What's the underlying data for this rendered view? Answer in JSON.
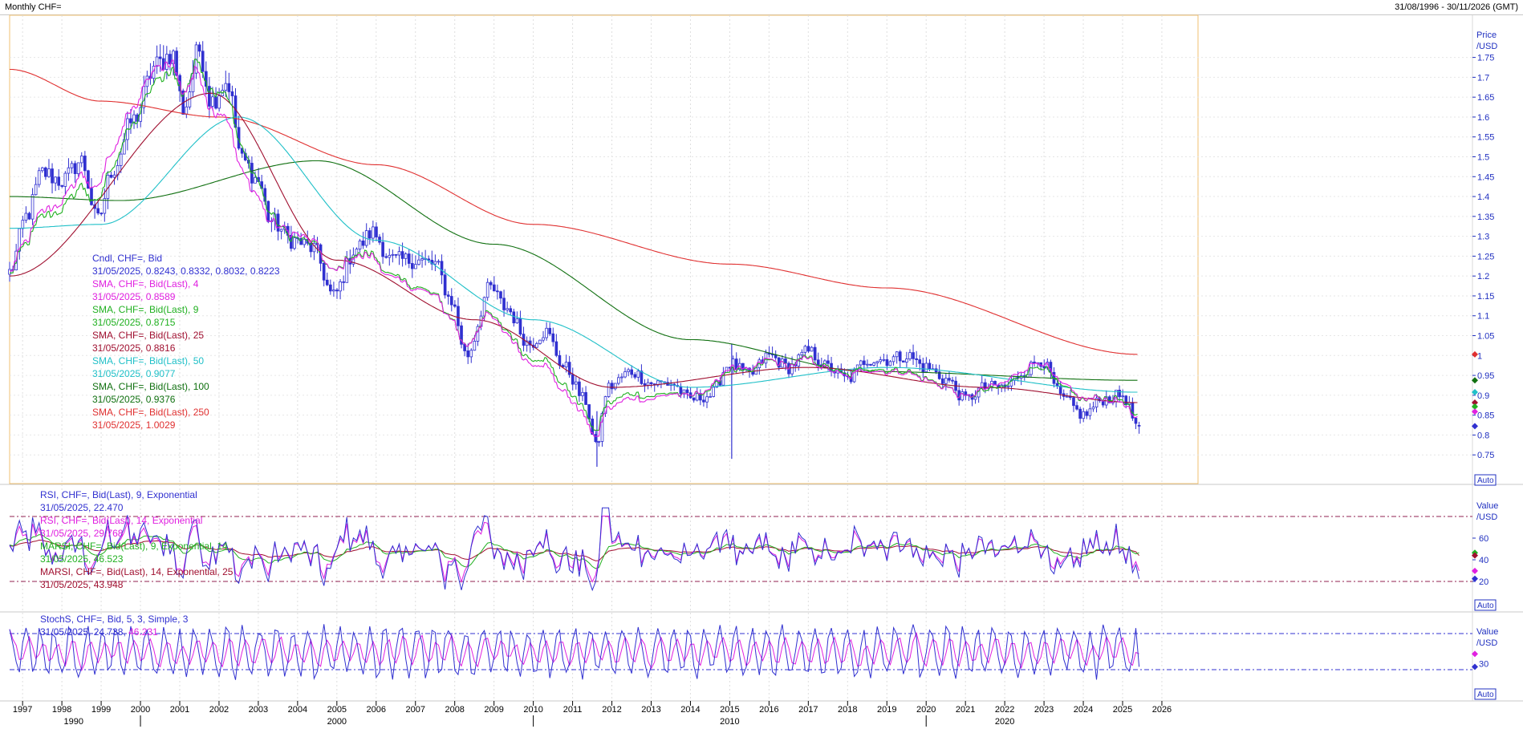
{
  "window": {
    "title": "Monthly CHF=",
    "date_range": "31/08/1996 - 30/11/2026 (GMT)"
  },
  "price_panel": {
    "axis_title": [
      "Price",
      "/USD"
    ],
    "auto_label": "Auto",
    "yticks": [
      "1.75",
      "1.7",
      "1.65",
      "1.6",
      "1.55",
      "1.5",
      "1.45",
      "1.4",
      "1.35",
      "1.3",
      "1.25",
      "1.2",
      "1.15",
      "1.1",
      "1.05",
      "1",
      "0.95",
      "0.9",
      "0.85",
      "0.8",
      "0.75"
    ],
    "legend": [
      {
        "label": "Cndl, CHF=, Bid",
        "value": "31/05/2025, 0.8243, 0.8332, 0.8032, 0.8223",
        "color": "#3030d0"
      },
      {
        "label": "SMA, CHF=, Bid(Last), 4",
        "value": "31/05/2025, 0.8589",
        "color": "#e020e0"
      },
      {
        "label": "SMA, CHF=, Bid(Last), 9",
        "value": "31/05/2025, 0.8715",
        "color": "#20b020"
      },
      {
        "label": "SMA, CHF=, Bid(Last), 25",
        "value": "31/05/2025, 0.8816",
        "color": "#a01030"
      },
      {
        "label": "SMA, CHF=, Bid(Last), 50",
        "value": "31/05/2025, 0.9077",
        "color": "#20c0c8"
      },
      {
        "label": "SMA, CHF=, Bid(Last), 100",
        "value": "31/05/2025, 0.9376",
        "color": "#107010"
      },
      {
        "label": "SMA, CHF=, Bid(Last), 250",
        "value": "31/05/2025, 1.0029",
        "color": "#e03030"
      }
    ]
  },
  "rsi_panel": {
    "axis_title": [
      "Value",
      "/USD"
    ],
    "auto_label": "Auto",
    "yticks": [
      "60",
      "40",
      "20"
    ],
    "legend": [
      {
        "label": "RSI, CHF=, Bid(Last), 9, Exponential",
        "value": "31/05/2025, 22.470",
        "color": "#3030d0"
      },
      {
        "label": "RSI, CHF=, Bid(Last), 14, Exponential",
        "value": "31/05/2025, 29.768",
        "color": "#e020e0"
      },
      {
        "label": "MARSI, CHF=, Bid(Last), 9, Exponential, 14",
        "value": "31/05/2025, 46.523",
        "color": "#20b020"
      },
      {
        "label": "MARSI, CHF=, Bid(Last), 14, Exponential, 25",
        "value": "31/05/2025, 43.948",
        "color": "#a01030"
      }
    ]
  },
  "stoch_panel": {
    "axis_title": [
      "Value",
      "/USD"
    ],
    "auto_label": "Auto",
    "yticks": [
      "30"
    ],
    "legend": {
      "label": "StochS, CHF=, Bid, 5, 3, Simple, 3",
      "date": "31/05/2025",
      "value1": "24.738",
      "value2": "46.231",
      "color1": "#3030d0",
      "color2": "#e020e0"
    }
  },
  "x_axis": {
    "years": [
      "1997",
      "1998",
      "1999",
      "2000",
      "2001",
      "2002",
      "2003",
      "2004",
      "2005",
      "2006",
      "2007",
      "2008",
      "2009",
      "2010",
      "2011",
      "2012",
      "2013",
      "2014",
      "2015",
      "2016",
      "2017",
      "2018",
      "2019",
      "2020",
      "2021",
      "2022",
      "2023",
      "2024",
      "2025",
      "2026"
    ],
    "decades": [
      "1990",
      "2000",
      "2010",
      "2020"
    ]
  },
  "chart_data": {
    "type": "candlestick",
    "title": "Monthly CHF=",
    "x_range": [
      "1996-08-31",
      "2026-11-30"
    ],
    "ylim": [
      0.72,
      1.78
    ],
    "last_candle": {
      "date": "31/05/2025",
      "open": 0.8243,
      "high": 0.8332,
      "low": 0.8032,
      "close": 0.8223
    },
    "price_anchors": [
      {
        "x": 1996.67,
        "y": 1.21
      },
      {
        "x": 1997.1,
        "y": 1.35
      },
      {
        "x": 1997.5,
        "y": 1.46
      },
      {
        "x": 1998.0,
        "y": 1.44
      },
      {
        "x": 1998.5,
        "y": 1.49
      },
      {
        "x": 1998.9,
        "y": 1.34
      },
      {
        "x": 1999.3,
        "y": 1.47
      },
      {
        "x": 1999.8,
        "y": 1.59
      },
      {
        "x": 2000.4,
        "y": 1.73
      },
      {
        "x": 2000.8,
        "y": 1.76
      },
      {
        "x": 2001.1,
        "y": 1.62
      },
      {
        "x": 2001.5,
        "y": 1.77
      },
      {
        "x": 2001.8,
        "y": 1.64
      },
      {
        "x": 2002.2,
        "y": 1.69
      },
      {
        "x": 2002.6,
        "y": 1.49
      },
      {
        "x": 2003.0,
        "y": 1.44
      },
      {
        "x": 2003.3,
        "y": 1.34
      },
      {
        "x": 2003.9,
        "y": 1.29
      },
      {
        "x": 2004.4,
        "y": 1.27
      },
      {
        "x": 2004.9,
        "y": 1.15
      },
      {
        "x": 2005.5,
        "y": 1.27
      },
      {
        "x": 2005.9,
        "y": 1.31
      },
      {
        "x": 2006.4,
        "y": 1.24
      },
      {
        "x": 2007.0,
        "y": 1.24
      },
      {
        "x": 2007.5,
        "y": 1.23
      },
      {
        "x": 2007.9,
        "y": 1.14
      },
      {
        "x": 2008.3,
        "y": 1.0
      },
      {
        "x": 2008.9,
        "y": 1.17
      },
      {
        "x": 2009.3,
        "y": 1.12
      },
      {
        "x": 2009.9,
        "y": 1.03
      },
      {
        "x": 2010.3,
        "y": 1.06
      },
      {
        "x": 2010.8,
        "y": 0.97
      },
      {
        "x": 2011.3,
        "y": 0.89
      },
      {
        "x": 2011.6,
        "y": 0.77
      },
      {
        "x": 2011.9,
        "y": 0.92
      },
      {
        "x": 2012.5,
        "y": 0.96
      },
      {
        "x": 2013.0,
        "y": 0.93
      },
      {
        "x": 2013.5,
        "y": 0.93
      },
      {
        "x": 2014.0,
        "y": 0.89
      },
      {
        "x": 2014.5,
        "y": 0.9
      },
      {
        "x": 2015.0,
        "y": 0.98
      },
      {
        "x": 2015.5,
        "y": 0.95
      },
      {
        "x": 2016.0,
        "y": 1.0
      },
      {
        "x": 2016.5,
        "y": 0.97
      },
      {
        "x": 2017.0,
        "y": 1.01
      },
      {
        "x": 2017.5,
        "y": 0.97
      },
      {
        "x": 2018.0,
        "y": 0.94
      },
      {
        "x": 2018.5,
        "y": 0.99
      },
      {
        "x": 2019.0,
        "y": 0.99
      },
      {
        "x": 2019.5,
        "y": 1.0
      },
      {
        "x": 2020.0,
        "y": 0.97
      },
      {
        "x": 2020.5,
        "y": 0.94
      },
      {
        "x": 2021.0,
        "y": 0.89
      },
      {
        "x": 2021.5,
        "y": 0.92
      },
      {
        "x": 2022.0,
        "y": 0.92
      },
      {
        "x": 2022.5,
        "y": 0.96
      },
      {
        "x": 2022.9,
        "y": 0.99
      },
      {
        "x": 2023.5,
        "y": 0.89
      },
      {
        "x": 2024.0,
        "y": 0.85
      },
      {
        "x": 2024.5,
        "y": 0.89
      },
      {
        "x": 2025.0,
        "y": 0.9
      },
      {
        "x": 2025.4,
        "y": 0.82
      }
    ],
    "sma_anchors": {
      "sma4": [
        {
          "x": 1996.67,
          "y": 1.21
        },
        {
          "x": 2000.8,
          "y": 1.72
        },
        {
          "x": 2003.5,
          "y": 1.33
        },
        {
          "x": 2008.3,
          "y": 1.05
        },
        {
          "x": 2011.6,
          "y": 0.81
        },
        {
          "x": 2016.0,
          "y": 0.98
        },
        {
          "x": 2021.0,
          "y": 0.9
        },
        {
          "x": 2022.9,
          "y": 0.98
        },
        {
          "x": 2025.4,
          "y": 0.8589
        }
      ],
      "sma9": [
        {
          "x": 1996.67,
          "y": 1.2
        },
        {
          "x": 2001.5,
          "y": 1.71
        },
        {
          "x": 2004.0,
          "y": 1.3
        },
        {
          "x": 2008.4,
          "y": 1.05
        },
        {
          "x": 2011.7,
          "y": 0.84
        },
        {
          "x": 2016.5,
          "y": 0.98
        },
        {
          "x": 2021.2,
          "y": 0.9
        },
        {
          "x": 2023.0,
          "y": 0.96
        },
        {
          "x": 2025.4,
          "y": 0.8715
        }
      ],
      "sma25": [
        {
          "x": 1996.67,
          "y": 1.2
        },
        {
          "x": 2001.8,
          "y": 1.66
        },
        {
          "x": 2005.0,
          "y": 1.24
        },
        {
          "x": 2008.5,
          "y": 1.09
        },
        {
          "x": 2012.0,
          "y": 0.92
        },
        {
          "x": 2017.0,
          "y": 0.97
        },
        {
          "x": 2021.5,
          "y": 0.92
        },
        {
          "x": 2025.4,
          "y": 0.8816
        }
      ],
      "sma50": [
        {
          "x": 1996.67,
          "y": 1.32
        },
        {
          "x": 1999.0,
          "y": 1.33
        },
        {
          "x": 2002.5,
          "y": 1.6
        },
        {
          "x": 2006.0,
          "y": 1.29
        },
        {
          "x": 2010.0,
          "y": 1.09
        },
        {
          "x": 2014.0,
          "y": 0.92
        },
        {
          "x": 2019.0,
          "y": 0.97
        },
        {
          "x": 2025.4,
          "y": 0.9077
        }
      ],
      "sma100": [
        {
          "x": 1996.67,
          "y": 1.4
        },
        {
          "x": 1999.5,
          "y": 1.39
        },
        {
          "x": 2004.5,
          "y": 1.49
        },
        {
          "x": 2009.0,
          "y": 1.28
        },
        {
          "x": 2014.0,
          "y": 1.04
        },
        {
          "x": 2018.5,
          "y": 0.96
        },
        {
          "x": 2025.4,
          "y": 0.9376
        }
      ],
      "sma250": [
        {
          "x": 1996.67,
          "y": 1.72
        },
        {
          "x": 1999.0,
          "y": 1.64
        },
        {
          "x": 2002.0,
          "y": 1.6
        },
        {
          "x": 2006.0,
          "y": 1.48
        },
        {
          "x": 2010.0,
          "y": 1.33
        },
        {
          "x": 2015.0,
          "y": 1.23
        },
        {
          "x": 2019.0,
          "y": 1.17
        },
        {
          "x": 2025.4,
          "y": 1.0029
        }
      ]
    },
    "rsi_last": {
      "rsi9": 22.47,
      "rsi14": 29.768,
      "marsi9": 46.523,
      "marsi14": 43.948
    },
    "rsi_levels": [
      80,
      20
    ],
    "stoch_last": {
      "k": 24.738,
      "d": 46.231
    },
    "stoch_levels": [
      80,
      20
    ]
  }
}
